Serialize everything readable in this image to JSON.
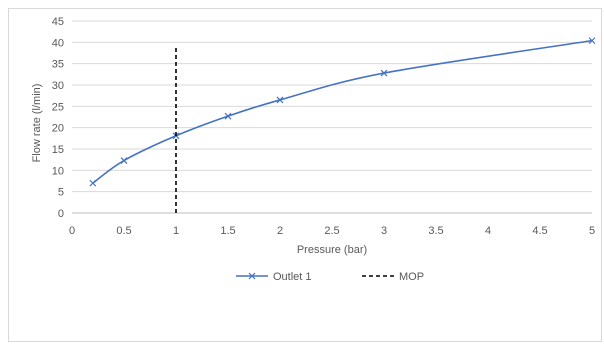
{
  "chart_data": {
    "type": "line",
    "title": "",
    "xlabel": "Pressure (bar)",
    "ylabel": "Flow rate (l/min)",
    "xlim": [
      0,
      5
    ],
    "ylim": [
      0,
      45
    ],
    "xticks": [
      "0",
      "0.5",
      "1",
      "1.5",
      "2",
      "2.5",
      "3",
      "3.5",
      "4",
      "4.5",
      "5"
    ],
    "yticks": [
      "0",
      "5",
      "10",
      "15",
      "20",
      "25",
      "30",
      "35",
      "40",
      "45"
    ],
    "grid": "horizontal",
    "legend_position": "bottom",
    "series": [
      {
        "name": "Outlet 1",
        "color": "#4472c4",
        "marker": "x",
        "smooth": true,
        "x": [
          0.2,
          0.5,
          1,
          1.5,
          2,
          3,
          5
        ],
        "y": [
          7,
          12.3,
          18.1,
          22.7,
          26.5,
          32.8,
          40.4
        ]
      },
      {
        "name": "MOP",
        "color": "#000000",
        "style": "dashed",
        "x": [
          1,
          1
        ],
        "y": [
          0,
          39
        ]
      }
    ]
  }
}
